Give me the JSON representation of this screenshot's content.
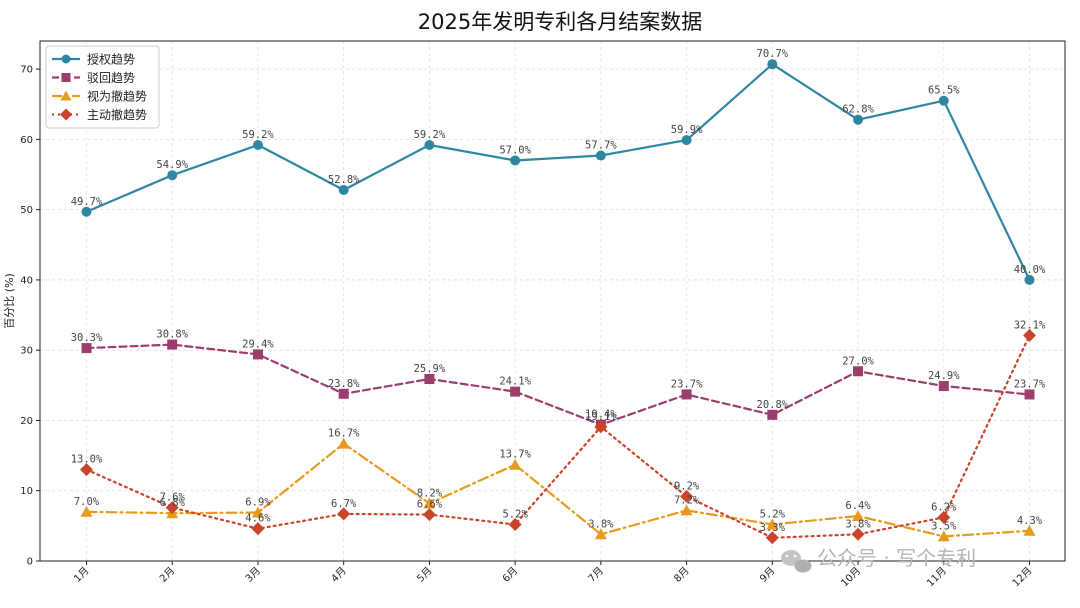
{
  "chart_data": {
    "type": "line",
    "title": "2025年发明专利各月结案数据",
    "ylabel": "百分比 (%)",
    "xlabel": "",
    "ylim": [
      0,
      74
    ],
    "yticks": [
      0,
      10,
      20,
      30,
      40,
      50,
      60,
      70
    ],
    "grid": true,
    "legend_position": "top-left",
    "categories": [
      "1月",
      "2月",
      "3月",
      "4月",
      "5月",
      "6月",
      "7月",
      "8月",
      "9月",
      "10月",
      "11月",
      "12月"
    ],
    "series": [
      {
        "name": "授权趋势",
        "color": "#2e86a0",
        "dash": "solid",
        "marker": "circle",
        "values": [
          49.7,
          54.9,
          59.2,
          52.8,
          59.2,
          57.0,
          57.7,
          59.9,
          70.7,
          62.8,
          65.5,
          40.0
        ],
        "labels": [
          "49.7%",
          "54.9%",
          "59.2%",
          "52.8%",
          "59.2%",
          "57.0%",
          "57.7%",
          "59.9%",
          "70.7%",
          "62.8%",
          "65.5%",
          "40.0%"
        ]
      },
      {
        "name": "驳回趋势",
        "color": "#9b3d6d",
        "dash": "dashed",
        "marker": "square",
        "values": [
          30.3,
          30.8,
          29.4,
          23.8,
          25.9,
          24.1,
          19.4,
          23.7,
          20.8,
          27.0,
          24.9,
          23.7
        ],
        "labels": [
          "30.3%",
          "30.8%",
          "29.4%",
          "23.8%",
          "25.9%",
          "24.1%",
          "19.4%",
          "23.7%",
          "20.8%",
          "27.0%",
          "24.9%",
          "23.7%"
        ]
      },
      {
        "name": "视为撤趋势",
        "color": "#e69b1e",
        "dash": "dashdot",
        "marker": "triangle",
        "values": [
          7.0,
          6.8,
          6.9,
          16.7,
          8.2,
          13.7,
          3.8,
          7.2,
          5.2,
          6.4,
          3.5,
          4.3
        ],
        "labels": [
          "7.0%",
          "6.8%",
          "6.9%",
          "16.7%",
          "8.2%",
          "13.7%",
          "3.8%",
          "7.2%",
          "5.2%",
          "6.4%",
          "3.5%",
          "4.3%"
        ]
      },
      {
        "name": "主动撤趋势",
        "color": "#c8452b",
        "dash": "dotted",
        "marker": "diamond",
        "values": [
          13.0,
          7.6,
          4.6,
          6.7,
          6.6,
          5.2,
          19.1,
          9.2,
          3.3,
          3.8,
          6.2,
          32.1
        ],
        "labels": [
          "13.0%",
          "7.6%",
          "4.6%",
          "6.7%",
          "6.6%",
          "5.2%",
          "19.1%",
          "9.2%",
          "3.3%",
          "3.8%",
          "6.2%",
          "32.1%"
        ]
      }
    ]
  },
  "watermark": {
    "text": "公众号 · 写个专利"
  }
}
